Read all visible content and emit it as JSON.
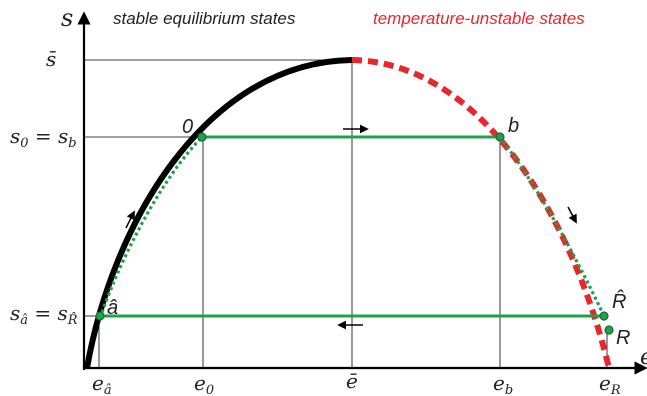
{
  "header": {
    "stable_label": "stable equilibrium states",
    "unstable_label": "temperature-unstable states"
  },
  "axes": {
    "y_symbol": "s",
    "x_symbol": "e"
  },
  "y_ticks": {
    "s_bar": "s̄",
    "s0_lhs": "s",
    "s0_lhs_sub": "0",
    "s0_eq": " = ",
    "s0_rhs": "s",
    "s0_rhs_sub": "b",
    "sa_lhs": "s",
    "sa_lhs_sub": "â",
    "sa_eq": " = ",
    "sa_rhs": "s",
    "sa_rhs_sub": "R̂"
  },
  "x_ticks": {
    "ea": "e",
    "ea_sub": "â",
    "e0": "e",
    "e0_sub": "0",
    "ebar": "ē",
    "eb": "e",
    "eb_sub": "b",
    "eR": "e",
    "eR_sub": "R"
  },
  "points": {
    "zero": "0",
    "b": "b",
    "a_hat": "â",
    "R_hat": "R̂",
    "R": "R"
  },
  "colors": {
    "stable_curve": "#000000",
    "unstable_curve": "#e8262b",
    "process_line": "#1fa04a",
    "unstable_text": "#e8262b",
    "text": "#222222"
  },
  "icons": {
    "y_axis_arrow": "arrow-up-icon",
    "x_axis_arrow": "arrow-right-icon",
    "upper_line_arrow": "arrow-right-icon",
    "lower_line_arrow": "arrow-left-icon"
  }
}
